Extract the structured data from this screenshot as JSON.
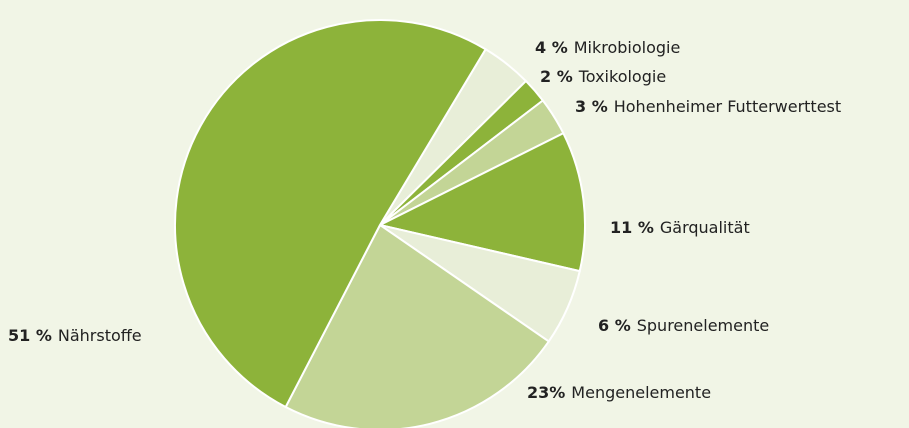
{
  "chart_data": {
    "type": "pie",
    "categories": [
      "Mikrobiologie",
      "Toxikologie",
      "Hohenheimer Futterwerttest",
      "Gärqualität",
      "Spurenelemente",
      "Mengenelemente",
      "Nährstoffe"
    ],
    "values": [
      4,
      2,
      3,
      11,
      6,
      23,
      51
    ],
    "value_labels": [
      "4 %",
      "2 %",
      "3 %",
      "11 %",
      "6 %",
      "23%",
      "51 %"
    ],
    "colors": [
      "#e8eed8",
      "#8db33a",
      "#c3d596",
      "#8db33a",
      "#e8eed8",
      "#c3d596",
      "#8db33a"
    ]
  }
}
